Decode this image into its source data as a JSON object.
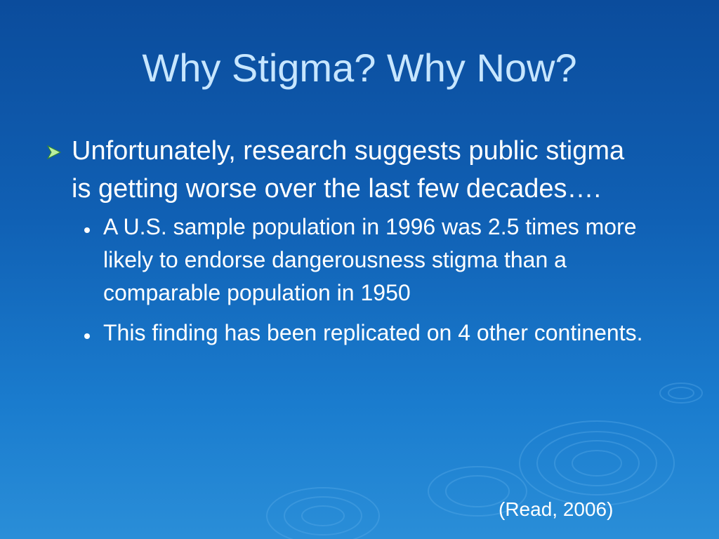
{
  "slide": {
    "title": "Why Stigma? Why Now?",
    "bullets": [
      {
        "text": "Unfortunately, research suggests public stigma is getting worse over the last few decades….",
        "sub_bullets": [
          "A U.S. sample population in 1996 was 2.5 times more likely to endorse dangerousness stigma than a comparable population in 1950",
          "This finding has been replicated on 4 other continents."
        ]
      }
    ],
    "citation": "(Read, 2006)"
  }
}
